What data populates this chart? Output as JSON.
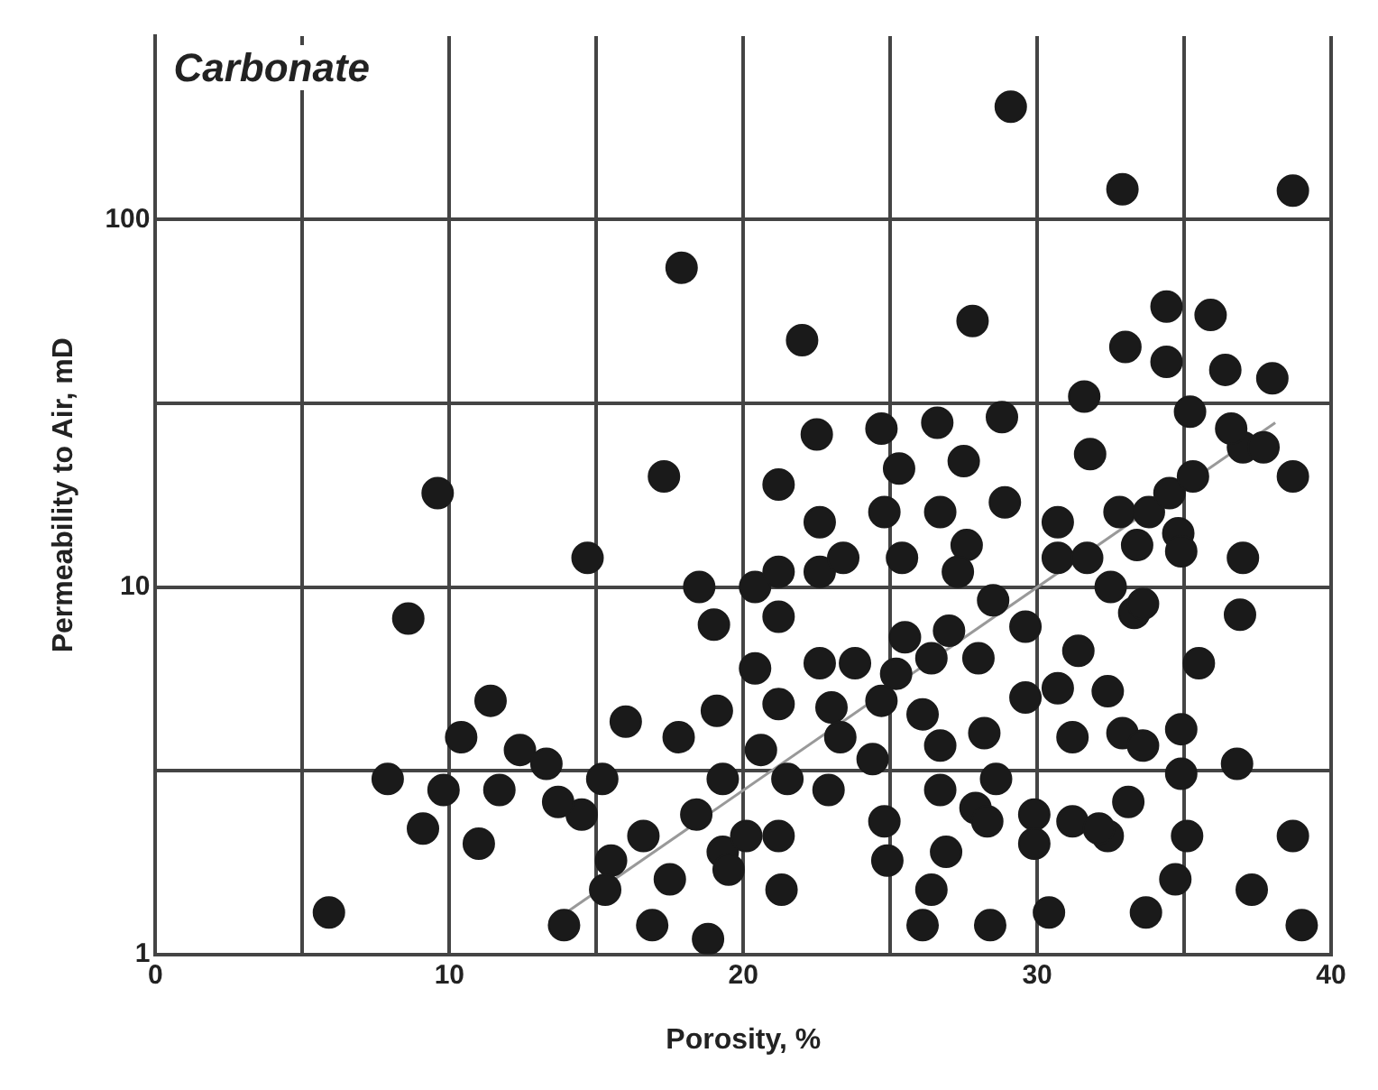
{
  "chart_data": {
    "type": "scatter",
    "xlabel": "Porosity, %",
    "ylabel": "Permeability to Air, mD",
    "annotations": [
      "Carbonate"
    ],
    "xlim": [
      0,
      40
    ],
    "xticks": [
      0,
      {
        "value": 5,
        "label": null
      },
      10,
      {
        "value": 15,
        "label": null
      },
      20,
      {
        "value": 25,
        "label": null
      },
      30,
      {
        "value": 35,
        "label": null
      },
      40
    ],
    "ylim": [
      1,
      316
    ],
    "yticks": [
      1,
      {
        "value": 3.162,
        "label": null
      },
      10,
      {
        "value": 31.62,
        "label": null
      },
      100
    ],
    "log": "y",
    "grid": true,
    "legend": false,
    "marker": "circle",
    "series": [
      {
        "color": "#1a1a1a",
        "x": [
          29.1,
          32.9,
          38.7,
          17.9,
          22.0,
          27.8,
          34.4,
          35.9,
          33.0,
          34.4,
          36.4,
          38.0,
          9.6,
          17.3,
          21.2,
          22.5,
          24.7,
          26.6,
          28.8,
          31.6,
          25.3,
          27.5,
          22.6,
          24.8,
          26.7,
          28.9,
          31.8,
          14.7,
          18.5,
          20.4,
          21.2,
          22.6,
          23.4,
          25.4,
          27.6,
          27.3,
          28.5,
          29.6,
          19.0,
          21.2,
          25.5,
          27.0,
          20.4,
          22.6,
          23.8,
          25.2,
          26.4,
          28.0,
          29.6,
          16.0,
          17.8,
          19.1,
          21.2,
          23.0,
          23.3,
          24.7,
          26.1,
          26.7,
          28.2,
          20.6,
          24.4,
          15.2,
          19.3,
          21.5,
          22.9,
          26.7,
          28.6,
          14.5,
          18.4,
          16.6,
          27.9,
          28.3,
          29.9,
          19.3,
          20.1,
          21.2,
          24.8,
          26.9,
          29.9,
          15.5,
          17.5,
          19.5,
          24.9,
          15.3,
          21.3,
          26.4,
          16.9,
          18.8,
          26.1,
          28.4,
          8.6,
          11.4,
          10.4,
          12.4,
          13.3,
          7.9,
          9.8,
          11.7,
          13.7,
          9.1,
          11.0,
          5.9,
          13.9,
          30.4,
          33.7,
          34.7,
          37.3,
          39.0,
          30.7,
          30.7,
          31.7,
          32.5,
          31.4,
          32.4,
          33.3,
          33.6,
          32.8,
          33.8,
          33.4,
          34.5,
          34.8,
          34.9,
          37.0,
          36.6,
          35.2,
          35.3,
          38.7,
          37.7,
          37.0,
          36.9,
          35.5,
          32.9,
          31.2,
          33.6,
          34.9,
          34.9,
          36.8,
          31.2,
          32.4,
          33.1,
          35.1,
          38.7,
          32.1,
          30.7
        ],
        "values": [
          203,
          121,
          120,
          74,
          47,
          53,
          58,
          55,
          45,
          41,
          39,
          37,
          18,
          20,
          19,
          26,
          27,
          28,
          29,
          33,
          21,
          22,
          15,
          16,
          16,
          17,
          23,
          12,
          10,
          10,
          11,
          11,
          12,
          12,
          13,
          11,
          9.2,
          7.8,
          7.9,
          8.3,
          7.3,
          7.6,
          6.0,
          6.2,
          6.2,
          5.8,
          6.4,
          6.4,
          5.0,
          4.3,
          3.9,
          4.6,
          4.8,
          4.7,
          3.9,
          4.9,
          4.5,
          3.7,
          4.0,
          3.6,
          3.4,
          3.0,
          3.0,
          3.0,
          2.8,
          2.8,
          3.0,
          2.4,
          2.4,
          2.1,
          2.5,
          2.3,
          2.4,
          1.9,
          2.1,
          2.1,
          2.3,
          1.9,
          2.0,
          1.8,
          1.6,
          1.7,
          1.8,
          1.5,
          1.5,
          1.5,
          1.2,
          1.1,
          1.2,
          1.2,
          8.2,
          4.9,
          3.9,
          3.6,
          3.3,
          3.0,
          2.8,
          2.8,
          2.6,
          2.2,
          2.0,
          1.3,
          1.2,
          1.3,
          1.3,
          1.6,
          1.5,
          1.2,
          12,
          15,
          12,
          10,
          6.7,
          5.2,
          8.5,
          9.0,
          16,
          16,
          13,
          18,
          14,
          12.5,
          24,
          27,
          30,
          20,
          20,
          24,
          12,
          8.4,
          6.2,
          4.0,
          3.9,
          3.7,
          4.1,
          3.1,
          3.3,
          2.3,
          2.1,
          2.6,
          2.1,
          2.1,
          2.2,
          5.3
        ]
      },
      {
        "type": "line",
        "color": "#999999",
        "marker": "none",
        "x": [
          13.8,
          38.1
        ],
        "values": [
          1.27,
          28
        ]
      }
    ]
  }
}
